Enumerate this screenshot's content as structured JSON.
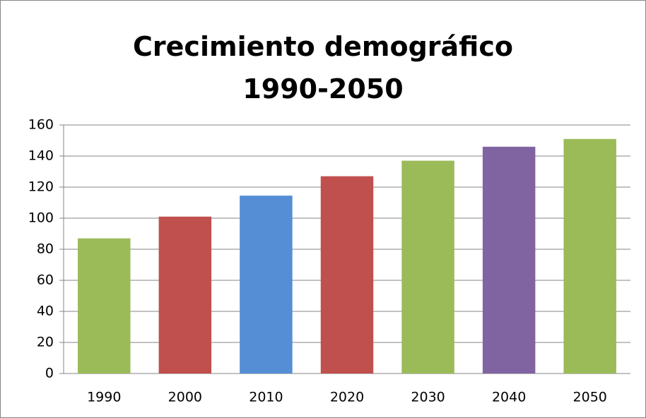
{
  "chart_data": {
    "type": "bar",
    "title": "Crecimiento demográfico 1990-2050",
    "categories": [
      "1990",
      "2000",
      "2010",
      "2020",
      "2030",
      "2040",
      "2050"
    ],
    "values": [
      87,
      101,
      114.5,
      127,
      137,
      146,
      151
    ],
    "colors": [
      "#9bbb59",
      "#c0504d",
      "#558ed5",
      "#c0504d",
      "#9bbb59",
      "#8064a2",
      "#9bbb59"
    ],
    "ylim": [
      0,
      160
    ],
    "yticks": [
      0,
      20,
      40,
      60,
      80,
      100,
      120,
      140,
      160
    ],
    "grid": true
  }
}
